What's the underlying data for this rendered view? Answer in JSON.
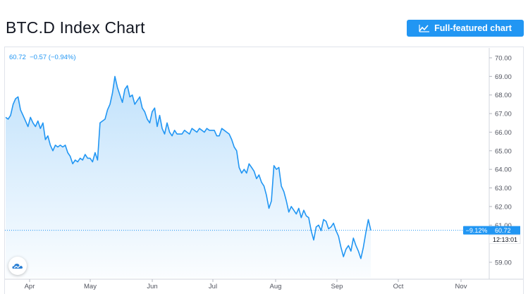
{
  "page": {
    "title": "BTC.D Index Chart",
    "full_chart_label": "Full-featured chart"
  },
  "legend": {
    "last": "60.72",
    "change": "−0.57",
    "change_pct": "(−0.94%)"
  },
  "badges": {
    "pct": "−9.12%",
    "price": "60.72",
    "countdown": "12:13:01"
  },
  "icons": {
    "full_chart": "chart-line-icon",
    "logo": "tradingview-logo-icon"
  },
  "colors": {
    "line": "#2196f3",
    "button": "#2196f3",
    "badge": "#2196f3"
  },
  "chart_data": {
    "type": "area",
    "title": "BTC.D Index Chart",
    "xlabel": "",
    "ylabel": "",
    "y_ticks": [
      "70.00",
      "69.00",
      "68.00",
      "67.00",
      "66.00",
      "65.00",
      "64.00",
      "63.00",
      "62.00",
      "61.00",
      "59.00"
    ],
    "x_ticks": [
      "Apr",
      "May",
      "Jun",
      "Jul",
      "Aug",
      "Sep",
      "Oct",
      "Nov"
    ],
    "ylim": [
      58.3,
      70.3
    ],
    "last_value": 60.72,
    "grid": false,
    "series": [
      {
        "values": [
          66.8,
          66.7,
          66.9,
          67.5,
          67.8,
          67.9,
          67.2,
          66.9,
          66.6,
          66.3,
          66.8,
          66.5,
          66.3,
          66.6,
          66.2,
          66.5,
          65.6,
          65.8,
          65.3,
          65.0,
          65.3,
          65.2,
          65.3,
          65.2,
          65.3,
          64.9,
          64.7,
          64.3,
          64.5,
          64.4,
          64.6,
          64.5,
          64.8,
          64.6,
          64.6,
          64.4,
          64.9,
          64.5,
          66.5,
          66.6,
          66.7,
          67.2,
          67.5,
          68.1,
          69.0,
          68.4,
          68.0,
          67.6,
          68.3,
          68.5,
          67.9,
          68.0,
          67.5,
          67.7,
          67.9,
          67.3,
          67.1,
          66.7,
          66.5,
          67.1,
          67.3,
          66.3,
          66.9,
          66.2,
          65.9,
          66.5,
          66.0,
          65.8,
          66.1,
          65.9,
          65.9,
          65.9,
          66.1,
          66.0,
          65.9,
          66.2,
          66.1,
          66.0,
          66.2,
          66.1,
          66.0,
          66.2,
          66.1,
          66.1,
          66.1,
          65.8,
          65.8,
          66.2,
          66.1,
          66.0,
          65.9,
          65.6,
          65.2,
          65.0,
          64.1,
          63.8,
          64.0,
          63.8,
          64.3,
          64.1,
          63.9,
          63.5,
          63.7,
          63.3,
          63.1,
          62.6,
          61.9,
          62.3,
          64.2,
          64.0,
          64.1,
          63.1,
          62.8,
          62.3,
          61.7,
          62.0,
          61.8,
          61.6,
          61.9,
          61.4,
          61.8,
          61.5,
          61.4,
          60.7,
          60.2,
          60.9,
          61.0,
          60.7,
          61.3,
          61.2,
          60.8,
          60.9,
          61.1,
          60.7,
          60.4,
          59.8,
          59.3,
          59.7,
          59.9,
          59.6,
          60.3,
          59.9,
          59.6,
          59.2,
          59.8,
          60.6,
          61.3,
          60.72
        ]
      }
    ]
  }
}
